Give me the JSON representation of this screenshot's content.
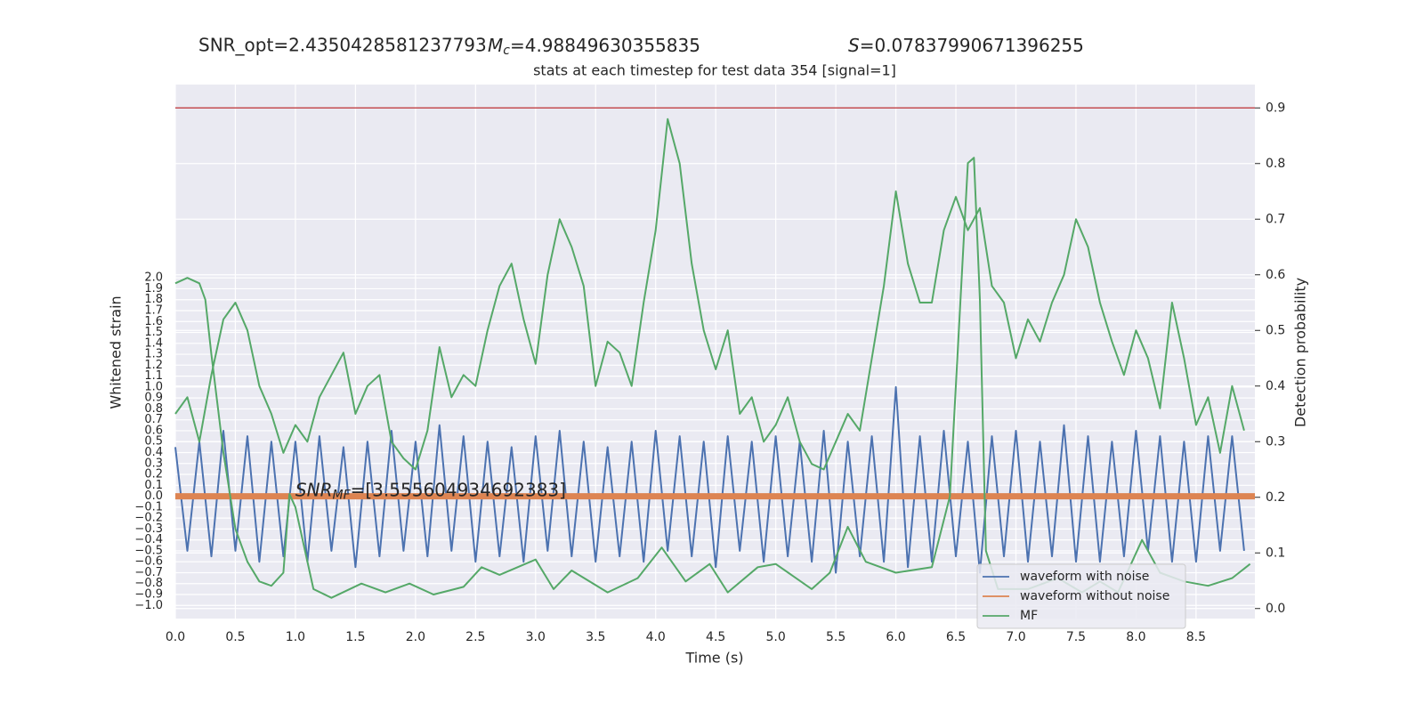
{
  "chart_data": {
    "type": "line",
    "title": "stats at each timestep for test data 354 [signal=1]",
    "header": {
      "snr_opt": "SNR_opt=2.4350428581237793",
      "mc": {
        "symbol": "M",
        "sub": "c",
        "text": "=4.98849630355835"
      },
      "s": {
        "symbol": "S",
        "text": "=0.07837990671396255"
      }
    },
    "annotation": {
      "symbol": "SNR",
      "sub": "MF",
      "text": "=[3.555604934692383]",
      "x": 1.0,
      "y": 0.0
    },
    "xlabel": "Time (s)",
    "ylabel": "Whitened strain",
    "y2label": "Detection probability",
    "xlim": [
      0,
      8.99
    ],
    "ylim": [
      -1.12,
      3.77
    ],
    "y2lim": [
      -0.018,
      0.942
    ],
    "xticks": [
      {
        "value": 0,
        "label": "0.0"
      },
      0.5,
      {
        "value": 1,
        "label": "1.0"
      },
      1.5,
      {
        "value": 2,
        "label": "2.0"
      },
      2.5,
      {
        "value": 3,
        "label": "3.0"
      },
      3.5,
      {
        "value": 4,
        "label": "4.0"
      },
      4.5,
      {
        "value": 5,
        "label": "5.0"
      },
      5.5,
      {
        "value": 6,
        "label": "6.0"
      },
      6.5,
      {
        "value": 7,
        "label": "7.0"
      },
      7.5,
      {
        "value": 8,
        "label": "8.0"
      },
      8.5
    ],
    "yticks": [
      {
        "value": -1,
        "label": "−1.0"
      },
      {
        "value": -0.9,
        "label": "−0.9"
      },
      {
        "value": -0.8,
        "label": "−0.8"
      },
      {
        "value": -0.7,
        "label": "−0.7"
      },
      {
        "value": -0.6,
        "label": "−0.6"
      },
      {
        "value": -0.5,
        "label": "−0.5"
      },
      {
        "value": -0.4,
        "label": "−0.4"
      },
      {
        "value": -0.3,
        "label": "−0.3"
      },
      {
        "value": -0.2,
        "label": "−0.2"
      },
      {
        "value": -0.1,
        "label": "−0.1"
      },
      {
        "value": 0,
        "label": "0.0"
      },
      0.1,
      0.2,
      0.3,
      0.4,
      0.5,
      0.6,
      0.7,
      0.8,
      0.9,
      {
        "value": 1,
        "label": "1.0"
      },
      1.1,
      1.2,
      1.3,
      1.4,
      1.5,
      1.6,
      1.7,
      1.8,
      1.9,
      {
        "value": 2,
        "label": "2.0"
      }
    ],
    "y2ticks": [
      {
        "value": 0,
        "label": "0.0"
      },
      0.1,
      0.2,
      0.3,
      0.4,
      0.5,
      0.6,
      0.7,
      0.8,
      0.9
    ],
    "grid": true,
    "legend": "lower right",
    "threshold": {
      "value": 0.9,
      "axis": "y2",
      "color": "#c44e52"
    },
    "x": [
      0.0,
      0.1,
      0.2,
      0.3,
      0.4,
      0.5,
      0.6,
      0.7,
      0.8,
      0.9,
      1.0,
      1.1,
      1.2,
      1.3,
      1.4,
      1.5,
      1.6,
      1.7,
      1.8,
      1.9,
      2.0,
      2.1,
      2.2,
      2.3,
      2.4,
      2.5,
      2.6,
      2.7,
      2.8,
      2.9,
      3.0,
      3.1,
      3.2,
      3.3,
      3.4,
      3.5,
      3.6,
      3.7,
      3.8,
      3.9,
      4.0,
      4.1,
      4.2,
      4.3,
      4.4,
      4.5,
      4.6,
      4.7,
      4.8,
      4.9,
      5.0,
      5.1,
      5.2,
      5.3,
      5.4,
      5.5,
      5.6,
      5.7,
      5.8,
      5.9,
      6.0,
      6.1,
      6.2,
      6.3,
      6.4,
      6.5,
      6.6,
      6.7,
      6.8,
      6.9,
      7.0,
      7.1,
      7.2,
      7.3,
      7.4,
      7.5,
      7.6,
      7.7,
      7.8,
      7.9,
      8.0,
      8.1,
      8.2,
      8.3,
      8.4,
      8.5,
      8.6,
      8.7,
      8.8,
      8.9
    ],
    "series": [
      {
        "name": "waveform with noise",
        "color": "#4c72b0",
        "width": 2,
        "values": [
          0.45,
          -0.5,
          0.5,
          -0.55,
          0.6,
          -0.5,
          0.55,
          -0.6,
          0.5,
          -0.55,
          0.5,
          -0.6,
          0.55,
          -0.5,
          0.45,
          -0.65,
          0.5,
          -0.55,
          0.6,
          -0.5,
          0.5,
          -0.55,
          0.65,
          -0.5,
          0.55,
          -0.6,
          0.5,
          -0.55,
          0.45,
          -0.6,
          0.55,
          -0.5,
          0.6,
          -0.55,
          0.5,
          -0.6,
          0.45,
          -0.55,
          0.5,
          -0.6,
          0.6,
          -0.5,
          0.55,
          -0.55,
          0.5,
          -0.65,
          0.55,
          -0.5,
          0.5,
          -0.6,
          0.55,
          -0.55,
          0.5,
          -0.6,
          0.6,
          -0.7,
          0.5,
          -0.55,
          0.55,
          -0.6,
          1.0,
          -0.65,
          0.55,
          -0.6,
          0.6,
          -0.55,
          0.5,
          -0.7,
          0.55,
          -0.55,
          0.6,
          -0.6,
          0.5,
          -0.55,
          0.65,
          -0.6,
          0.55,
          -0.6,
          0.5,
          -0.55,
          0.6,
          -0.5,
          0.55,
          -0.6,
          0.5,
          -0.6,
          0.55,
          -0.5,
          0.55,
          -0.5
        ]
      },
      {
        "name": "waveform without noise",
        "color": "#dd8452",
        "width": 7,
        "x": [
          0,
          1,
          2,
          3,
          4,
          5,
          6,
          7,
          8,
          8.99
        ],
        "values": [
          0,
          0,
          0,
          0,
          0,
          0,
          0,
          0,
          0,
          0
        ]
      },
      {
        "name": "MF",
        "color": "#55a868",
        "width": 2,
        "x": [
          0,
          0.1,
          0.2,
          0.25,
          0.3,
          0.4,
          0.5,
          0.6,
          0.7,
          0.8,
          0.9,
          0.95,
          1.0,
          1.15,
          1.3,
          1.55,
          1.75,
          1.95,
          2.15,
          2.4,
          2.55,
          2.7,
          3.0,
          3.15,
          3.3,
          3.6,
          3.85,
          4.05,
          4.25,
          4.45,
          4.6,
          4.85,
          5.0,
          5.3,
          5.45,
          5.6,
          5.75,
          6.0,
          6.3,
          6.45,
          6.6,
          6.65,
          6.7,
          6.75,
          6.85,
          7.1,
          7.35,
          7.55,
          7.7,
          7.85,
          8.05,
          8.2,
          8.4,
          8.6,
          8.8,
          8.95
        ],
        "values": [
          1.95,
          2.0,
          1.95,
          1.8,
          1.3,
          0.4,
          -0.3,
          -0.6,
          -0.78,
          -0.82,
          -0.7,
          0.02,
          -0.1,
          -0.85,
          -0.93,
          -0.8,
          -0.88,
          -0.8,
          -0.9,
          -0.83,
          -0.65,
          -0.72,
          -0.58,
          -0.85,
          -0.68,
          -0.88,
          -0.75,
          -0.47,
          -0.78,
          -0.62,
          -0.88,
          -0.65,
          -0.62,
          -0.85,
          -0.7,
          -0.28,
          -0.6,
          -0.7,
          -0.65,
          0.0,
          3.05,
          3.1,
          1.8,
          -0.5,
          -0.85,
          -0.85,
          -0.75,
          -0.88,
          -0.78,
          -0.88,
          -0.4,
          -0.7,
          -0.78,
          -0.82,
          -0.75,
          -0.62
        ]
      },
      {
        "color": "#55a868",
        "width": 2,
        "axis": "y2",
        "values": [
          0.35,
          0.38,
          0.3,
          0.42,
          0.52,
          0.55,
          0.5,
          0.4,
          0.35,
          0.28,
          0.33,
          0.3,
          0.38,
          0.42,
          0.46,
          0.35,
          0.4,
          0.42,
          0.3,
          0.27,
          0.25,
          0.32,
          0.47,
          0.38,
          0.42,
          0.4,
          0.5,
          0.58,
          0.62,
          0.52,
          0.44,
          0.6,
          0.7,
          0.65,
          0.58,
          0.4,
          0.48,
          0.46,
          0.4,
          0.55,
          0.68,
          0.88,
          0.8,
          0.62,
          0.5,
          0.43,
          0.5,
          0.35,
          0.38,
          0.3,
          0.33,
          0.38,
          0.3,
          0.26,
          0.25,
          0.3,
          0.35,
          0.32,
          0.45,
          0.58,
          0.75,
          0.62,
          0.55,
          0.55,
          0.68,
          0.74,
          0.68,
          0.72,
          0.58,
          0.55,
          0.45,
          0.52,
          0.48,
          0.55,
          0.6,
          0.7,
          0.65,
          0.55,
          0.48,
          0.42,
          0.5,
          0.45,
          0.36,
          0.55,
          0.45,
          0.33,
          0.38,
          0.28,
          0.4,
          0.32
        ]
      }
    ]
  }
}
